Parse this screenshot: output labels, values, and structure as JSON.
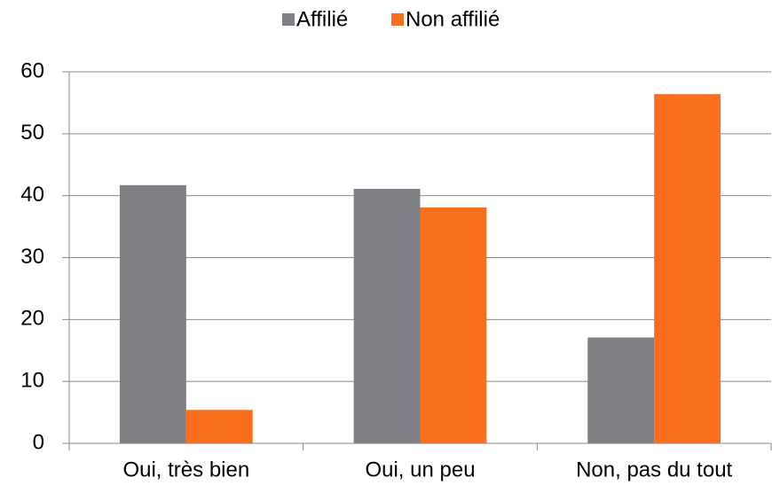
{
  "chart_data": {
    "type": "bar",
    "categories": [
      "Oui, très bien",
      "Oui, un peu",
      "Non, pas du tout"
    ],
    "series": [
      {
        "name": "Affilié",
        "color": "#7f7f84",
        "values": [
          41.7,
          41.1,
          17.1
        ]
      },
      {
        "name": "Non affilié",
        "color": "#f96f1e",
        "values": [
          5.4,
          38.1,
          56.4
        ]
      }
    ],
    "ylim": [
      0,
      60
    ],
    "yticks": [
      0,
      10,
      20,
      30,
      40,
      50,
      60
    ],
    "grid": true,
    "legend": "top"
  }
}
